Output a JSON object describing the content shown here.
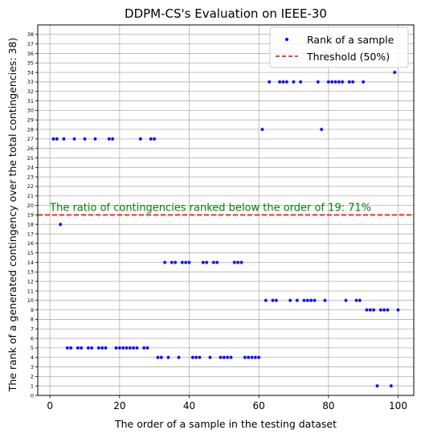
{
  "chart_data": {
    "type": "scatter",
    "title": "DDPM-CS's Evaluation on IEEE-30",
    "xlabel": "The order of a sample in the testing dataset",
    "ylabel": "The rank of a generated contingency over the total contingencies: 38)",
    "xlim": [
      -3.5,
      104.5
    ],
    "ylim": [
      0,
      39
    ],
    "xticks": [
      0,
      20,
      40,
      60,
      80,
      100
    ],
    "yticks": [
      0,
      1,
      2,
      3,
      4,
      5,
      6,
      7,
      8,
      9,
      10,
      11,
      12,
      13,
      14,
      15,
      16,
      17,
      18,
      19,
      20,
      21,
      22,
      23,
      24,
      25,
      26,
      27,
      28,
      29,
      30,
      31,
      32,
      33,
      34,
      35,
      36,
      37,
      38
    ],
    "grid": true,
    "legend_position": "top-right",
    "series": [
      {
        "name": "Rank of a sample",
        "kind": "scatter",
        "color": "#0000ff",
        "x": [
          1,
          2,
          3,
          4,
          5,
          6,
          7,
          8,
          9,
          10,
          11,
          12,
          13,
          14,
          15,
          16,
          17,
          18,
          19,
          20,
          21,
          22,
          23,
          24,
          25,
          26,
          27,
          28,
          29,
          30,
          31,
          32,
          33,
          34,
          35,
          36,
          37,
          38,
          39,
          40,
          41,
          42,
          43,
          44,
          45,
          46,
          47,
          48,
          49,
          50,
          51,
          52,
          53,
          54,
          55,
          56,
          57,
          58,
          59,
          60,
          61,
          62,
          63,
          64,
          65,
          66,
          67,
          68,
          69,
          70,
          71,
          72,
          73,
          74,
          75,
          76,
          77,
          78,
          79,
          80,
          81,
          82,
          83,
          84,
          85,
          86,
          87,
          88,
          89,
          90,
          91,
          92,
          93,
          94,
          95,
          96,
          97,
          98,
          99,
          100
        ],
        "y": [
          27,
          27,
          18,
          27,
          5,
          5,
          27,
          5,
          5,
          27,
          5,
          5,
          27,
          5,
          5,
          5,
          27,
          27,
          5,
          5,
          5,
          5,
          5,
          5,
          5,
          27,
          5,
          5,
          27,
          27,
          4,
          4,
          14,
          4,
          14,
          14,
          4,
          14,
          14,
          14,
          4,
          4,
          4,
          14,
          14,
          4,
          14,
          14,
          4,
          4,
          4,
          4,
          14,
          14,
          14,
          4,
          4,
          4,
          4,
          4,
          28,
          10,
          33,
          10,
          10,
          33,
          33,
          33,
          10,
          33,
          10,
          33,
          10,
          10,
          10,
          10,
          33,
          28,
          10,
          33,
          33,
          33,
          33,
          33,
          10,
          33,
          33,
          10,
          10,
          33,
          9,
          9,
          9,
          1,
          9,
          9,
          9,
          1,
          34,
          9
        ]
      },
      {
        "name": "Threshold (50%)",
        "kind": "hline",
        "color": "#ff0000",
        "y": 19
      }
    ],
    "annotations": [
      {
        "text": "The ratio of contingencies ranked below the order of 19: 71%",
        "x": 0,
        "y": 19.4,
        "color": "#008000"
      }
    ]
  }
}
